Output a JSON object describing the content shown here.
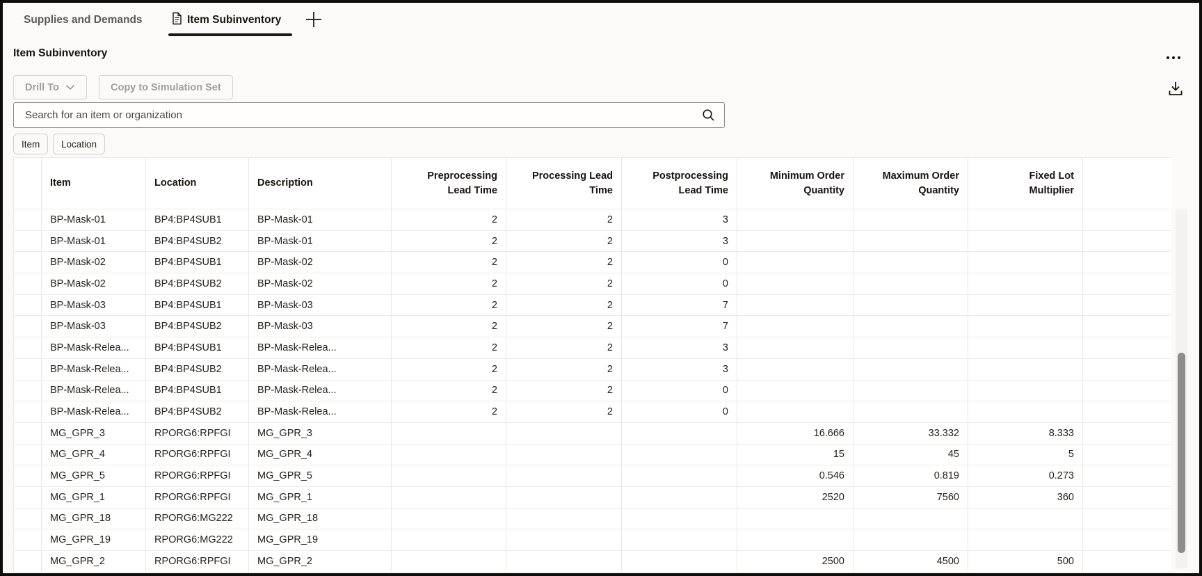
{
  "colors": {
    "page_background": "#fbfaf8",
    "frame_border": "#0e0d0c",
    "active_tab_underline": "#1c1914",
    "disabled_button_text": "#a29e9a",
    "grid_line": "#e9e7e4",
    "scrollbar_thumb": "#8c8c8c"
  },
  "tab_bar": {
    "tabs": [
      {
        "label": "Supplies and Demands",
        "active": false
      },
      {
        "label": "Item Subinventory",
        "active": true
      }
    ]
  },
  "header": {
    "title": "Item Subinventory"
  },
  "toolbar": {
    "drill_to_label": "Drill To",
    "copy_to_simulation_set_label": "Copy to Simulation Set"
  },
  "search": {
    "placeholder": "Search for an item or organization",
    "value": ""
  },
  "filter_chips": [
    {
      "label": "Item"
    },
    {
      "label": "Location"
    }
  ],
  "table": {
    "columns": [
      {
        "label": "Item"
      },
      {
        "label": "Location"
      },
      {
        "label": "Description"
      },
      {
        "label": "Preprocessing\nLead Time"
      },
      {
        "label": "Processing Lead\nTime"
      },
      {
        "label": "Postprocessing\nLead Time"
      },
      {
        "label": "Minimum Order\nQuantity"
      },
      {
        "label": "Maximum Order\nQuantity"
      },
      {
        "label": "Fixed Lot\nMultiplier"
      }
    ],
    "rows": [
      {
        "item": "BP-Mask-01",
        "location": "BP4:BP4SUB1",
        "description": "BP-Mask-01",
        "pre": "2",
        "proc": "2",
        "post": "3",
        "min": "",
        "max": "",
        "fixed": ""
      },
      {
        "item": "BP-Mask-01",
        "location": "BP4:BP4SUB2",
        "description": "BP-Mask-01",
        "pre": "2",
        "proc": "2",
        "post": "3",
        "min": "",
        "max": "",
        "fixed": ""
      },
      {
        "item": "BP-Mask-02",
        "location": "BP4:BP4SUB1",
        "description": "BP-Mask-02",
        "pre": "2",
        "proc": "2",
        "post": "0",
        "min": "",
        "max": "",
        "fixed": ""
      },
      {
        "item": "BP-Mask-02",
        "location": "BP4:BP4SUB2",
        "description": "BP-Mask-02",
        "pre": "2",
        "proc": "2",
        "post": "0",
        "min": "",
        "max": "",
        "fixed": ""
      },
      {
        "item": "BP-Mask-03",
        "location": "BP4:BP4SUB1",
        "description": "BP-Mask-03",
        "pre": "2",
        "proc": "2",
        "post": "7",
        "min": "",
        "max": "",
        "fixed": ""
      },
      {
        "item": "BP-Mask-03",
        "location": "BP4:BP4SUB2",
        "description": "BP-Mask-03",
        "pre": "2",
        "proc": "2",
        "post": "7",
        "min": "",
        "max": "",
        "fixed": ""
      },
      {
        "item": "BP-Mask-Relea...",
        "location": "BP4:BP4SUB1",
        "description": "BP-Mask-Relea...",
        "pre": "2",
        "proc": "2",
        "post": "3",
        "min": "",
        "max": "",
        "fixed": ""
      },
      {
        "item": "BP-Mask-Relea...",
        "location": "BP4:BP4SUB2",
        "description": "BP-Mask-Relea...",
        "pre": "2",
        "proc": "2",
        "post": "3",
        "min": "",
        "max": "",
        "fixed": ""
      },
      {
        "item": "BP-Mask-Relea...",
        "location": "BP4:BP4SUB1",
        "description": "BP-Mask-Relea...",
        "pre": "2",
        "proc": "2",
        "post": "0",
        "min": "",
        "max": "",
        "fixed": ""
      },
      {
        "item": "BP-Mask-Relea...",
        "location": "BP4:BP4SUB2",
        "description": "BP-Mask-Relea...",
        "pre": "2",
        "proc": "2",
        "post": "0",
        "min": "",
        "max": "",
        "fixed": ""
      },
      {
        "item": "MG_GPR_3",
        "location": "RPORG6:RPFGI",
        "description": "MG_GPR_3",
        "pre": "",
        "proc": "",
        "post": "",
        "min": "16.666",
        "max": "33.332",
        "fixed": "8.333"
      },
      {
        "item": "MG_GPR_4",
        "location": "RPORG6:RPFGI",
        "description": "MG_GPR_4",
        "pre": "",
        "proc": "",
        "post": "",
        "min": "15",
        "max": "45",
        "fixed": "5"
      },
      {
        "item": "MG_GPR_5",
        "location": "RPORG6:RPFGI",
        "description": "MG_GPR_5",
        "pre": "",
        "proc": "",
        "post": "",
        "min": "0.546",
        "max": "0.819",
        "fixed": "0.273"
      },
      {
        "item": "MG_GPR_1",
        "location": "RPORG6:RPFGI",
        "description": "MG_GPR_1",
        "pre": "",
        "proc": "",
        "post": "",
        "min": "2520",
        "max": "7560",
        "fixed": "360"
      },
      {
        "item": "MG_GPR_18",
        "location": "RPORG6:MG222",
        "description": "MG_GPR_18",
        "pre": "",
        "proc": "",
        "post": "",
        "min": "",
        "max": "",
        "fixed": ""
      },
      {
        "item": "MG_GPR_19",
        "location": "RPORG6:MG222",
        "description": "MG_GPR_19",
        "pre": "",
        "proc": "",
        "post": "",
        "min": "",
        "max": "",
        "fixed": ""
      },
      {
        "item": "MG_GPR_2",
        "location": "RPORG6:RPFGI",
        "description": "MG_GPR_2",
        "pre": "",
        "proc": "",
        "post": "",
        "min": "2500",
        "max": "4500",
        "fixed": "500"
      }
    ]
  }
}
